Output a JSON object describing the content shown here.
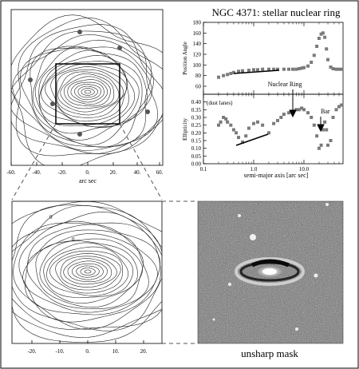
{
  "title": "NGC 4371: stellar nuclear ring",
  "contour_top": {
    "xlabel": "arc sec",
    "xticks": [
      "-60.",
      "-40.",
      "-20.",
      "0.",
      "20.",
      "40.",
      "60."
    ]
  },
  "contour_bottom": {
    "xticks": [
      "-20.",
      "-10.",
      "0.",
      "10.",
      "20."
    ],
    "contour_label": "0"
  },
  "unsharp_caption": "unsharp mask",
  "chart_data": [
    {
      "type": "scatter",
      "ylabel": "Position Angle",
      "xscale": "log",
      "xlim": [
        0.1,
        60
      ],
      "ylim": [
        45,
        180
      ],
      "yticks": [
        "60",
        "80",
        "100",
        "120",
        "140",
        "160",
        "180"
      ],
      "annotation": "Nuclear Ring",
      "series": [
        {
          "x": [
            0.2,
            0.25,
            0.3,
            0.35,
            0.4,
            0.5,
            0.6,
            0.8,
            1.0,
            1.2,
            1.5,
            2.0,
            2.5,
            3.0,
            4.0,
            5.0,
            6.0,
            7.0,
            8.0,
            9.0,
            10.0,
            12.0,
            14.0,
            16.0,
            18.0,
            20.0,
            22.0,
            24.0,
            26.0,
            28.0,
            30.0,
            34.0,
            38.0,
            44.0,
            50.0,
            56.0
          ],
          "y": [
            77,
            80,
            82,
            84,
            86,
            88,
            89,
            90,
            91,
            91,
            92,
            92,
            92,
            92,
            92,
            92,
            92,
            92,
            93,
            94,
            95,
            98,
            105,
            118,
            135,
            150,
            158,
            160,
            152,
            130,
            110,
            96,
            93,
            92,
            92,
            92
          ]
        }
      ]
    },
    {
      "type": "scatter",
      "ylabel": "Ellipticity",
      "xlabel": "semi-major axis [arc sec]",
      "xscale": "log",
      "xlim": [
        0.1,
        60
      ],
      "ylim": [
        0.0,
        0.45
      ],
      "yticks": [
        "0.00",
        "0.05",
        "0.10",
        "0.15",
        "0.20",
        "0.25",
        "0.30",
        "0.35",
        "0.40"
      ],
      "xticks": [
        "0.1",
        "1.0",
        "10.0"
      ],
      "annotations": [
        "(dust lanes)",
        "Bar"
      ],
      "series": [
        {
          "x": [
            0.2,
            0.22,
            0.25,
            0.28,
            0.3,
            0.35,
            0.4,
            0.45,
            0.5,
            0.6,
            0.7,
            0.8,
            1.0,
            1.2,
            1.5,
            2.0,
            2.5,
            3.0,
            3.5,
            4.0,
            5.0,
            6.0,
            7.0,
            8.0,
            9.0,
            10.0,
            12.0,
            14.0,
            16.0,
            18.0,
            20.0,
            22.0,
            24.0,
            26.0,
            28.0,
            30.0,
            34.0,
            38.0,
            44.0,
            50.0,
            56.0
          ],
          "y": [
            0.25,
            0.27,
            0.3,
            0.29,
            0.27,
            0.25,
            0.22,
            0.2,
            0.17,
            0.14,
            0.18,
            0.23,
            0.26,
            0.27,
            0.25,
            0.2,
            0.26,
            0.28,
            0.3,
            0.32,
            0.33,
            0.34,
            0.35,
            0.35,
            0.36,
            0.35,
            0.33,
            0.3,
            0.25,
            0.18,
            0.1,
            0.12,
            0.22,
            0.27,
            0.22,
            0.12,
            0.15,
            0.3,
            0.35,
            0.37,
            0.38
          ]
        }
      ]
    }
  ]
}
